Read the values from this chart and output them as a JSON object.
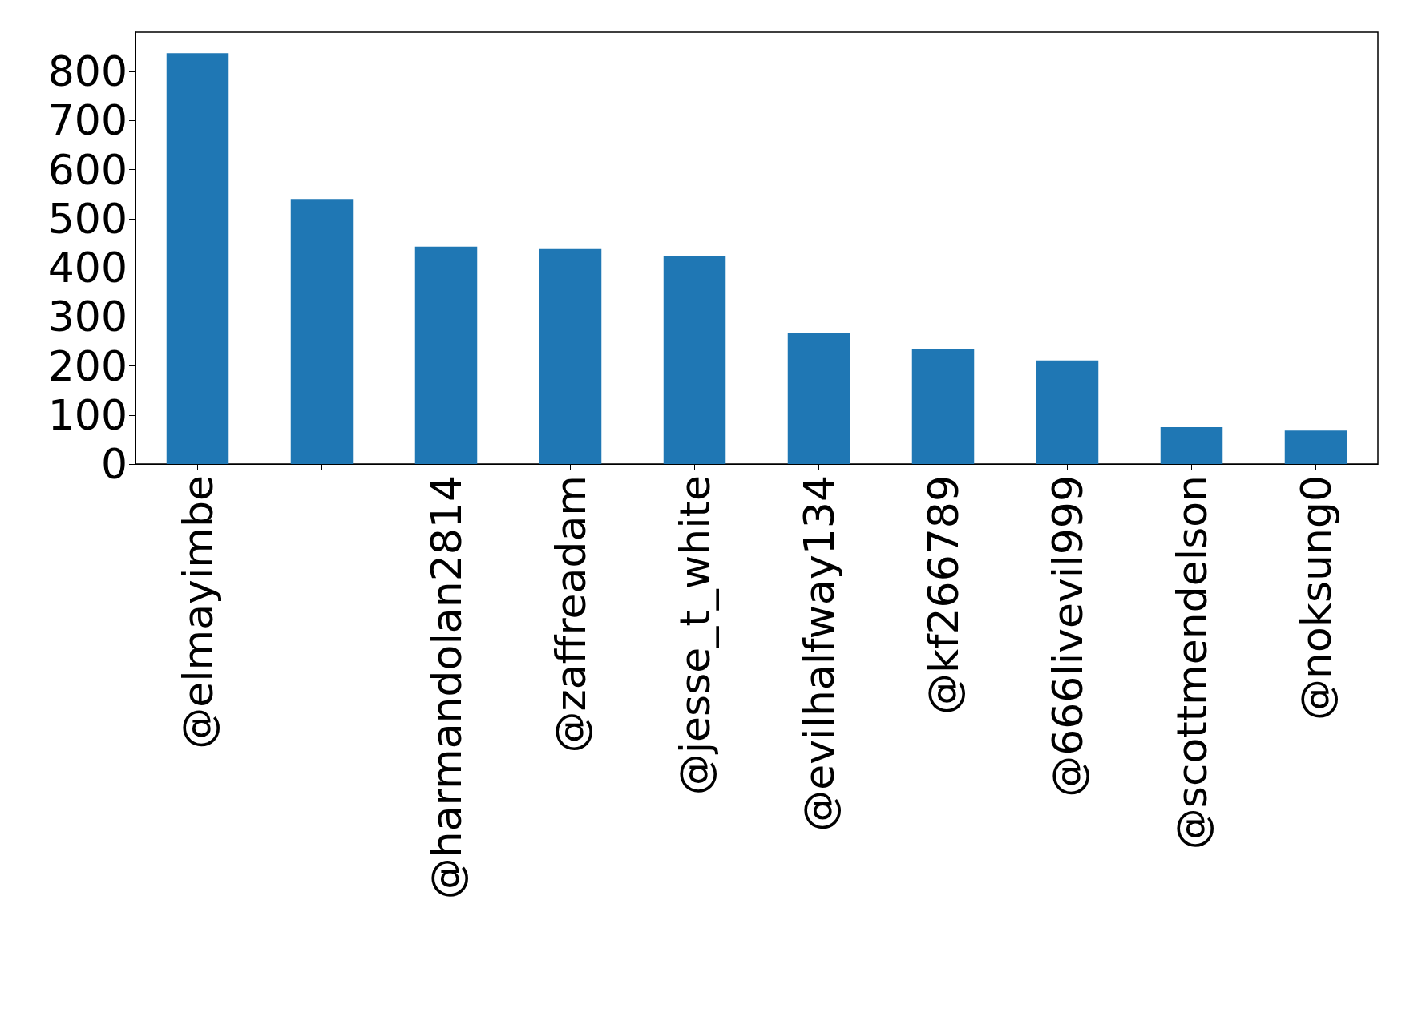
{
  "chart_data": {
    "type": "bar",
    "categories": [
      "@elmayimbe",
      null,
      "@harmandolan2814",
      "@zaffreadam",
      "@jesse_t_white",
      "@evilhalfway134",
      "@kf266789",
      "@666livevil999",
      "@scottmendelson",
      "@noksung0"
    ],
    "values": [
      837,
      540,
      443,
      438,
      423,
      267,
      234,
      211,
      75,
      68
    ],
    "color": "#1f77b4",
    "ylim": [
      0,
      880
    ],
    "yticks": [
      0,
      100,
      200,
      300,
      400,
      500,
      600,
      700,
      800
    ],
    "grid": false
  }
}
